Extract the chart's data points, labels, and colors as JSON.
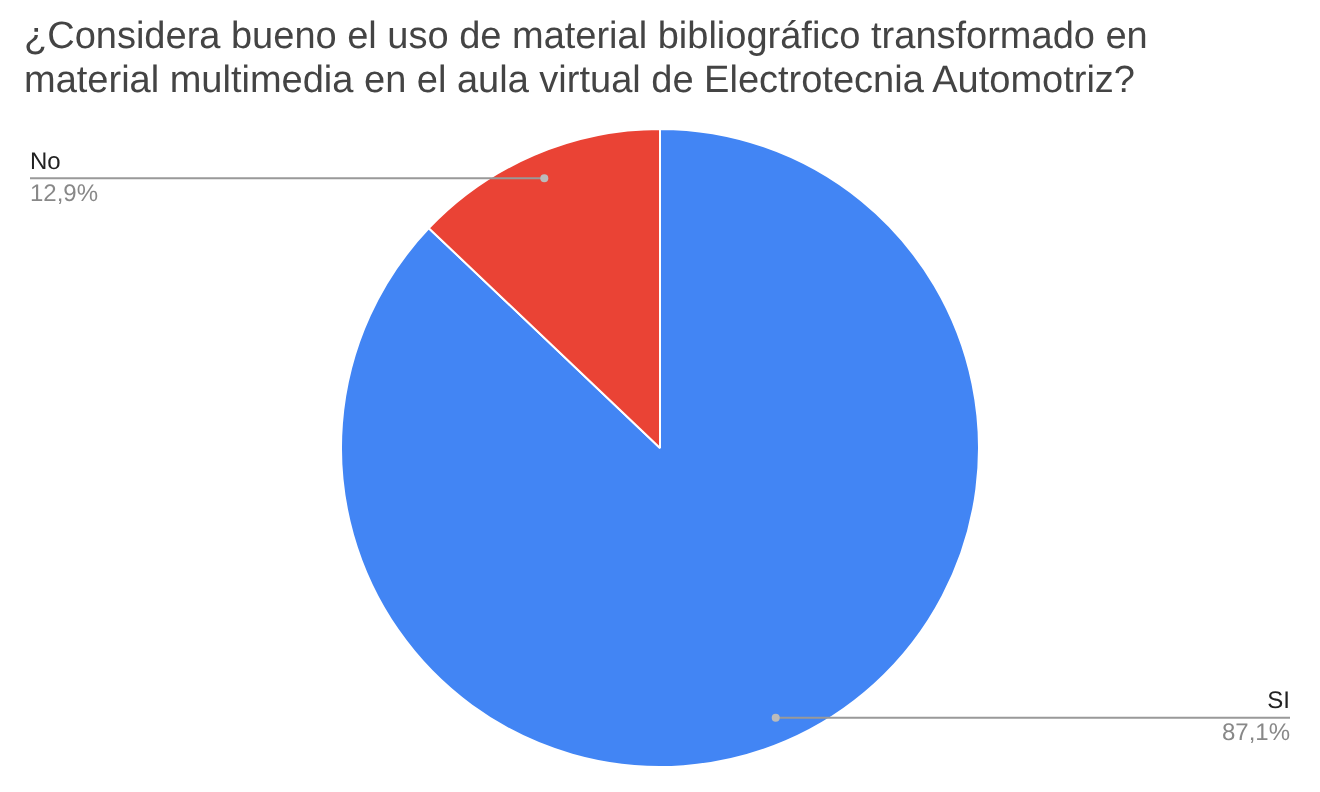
{
  "chart_data": {
    "type": "pie",
    "title": "¿Considera bueno el uso de material bibliográfico transformado en material multimedia en el aula virtual de Electrotecnia Automotriz?",
    "categories": [
      "SI",
      "No"
    ],
    "values": [
      87.1,
      12.9
    ],
    "colors": [
      "#4285f4",
      "#ea4335"
    ],
    "value_labels": [
      "87,1%",
      "12,9%"
    ],
    "legend": false
  }
}
